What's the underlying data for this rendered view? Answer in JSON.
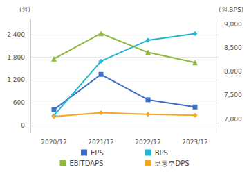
{
  "chart_data": {
    "type": "line",
    "y_label": "(원)",
    "y2_label": "(원,BPS)",
    "categories": [
      "2020/12",
      "2021/12",
      "2022/12",
      "2023/12"
    ],
    "series": [
      {
        "name": "EPS",
        "color": "#3b6fc6",
        "marker": "square",
        "values": [
          420,
          1350,
          680,
          490
        ]
      },
      {
        "name": "BPS",
        "color": "#22b6d2",
        "marker": "diamond",
        "axis": "y2",
        "values": [
          7070,
          8220,
          8660,
          8800
        ]
      },
      {
        "name": "EBITDAPS",
        "color": "#8cb83c",
        "marker": "triangle",
        "values": [
          1760,
          2430,
          1930,
          1660
        ]
      },
      {
        "name": "보통주DPS",
        "color": "#f5a623",
        "marker": "diamond",
        "values": [
          240,
          340,
          300,
          270
        ]
      }
    ],
    "ylim": [
      -200,
      2800
    ],
    "yticks": [
      0,
      600,
      {
        "value": 1200,
        "label": "1,200"
      },
      {
        "value": 1800,
        "label": "1,800"
      },
      {
        "value": 2400,
        "label": "2,400"
      }
    ],
    "y2lim": [
      6700,
      9100
    ],
    "y2ticks": [
      {
        "value": 7000,
        "label": "7,000"
      },
      {
        "value": 7500,
        "label": "7,500"
      },
      {
        "value": 8000,
        "label": "8,000"
      },
      {
        "value": 8500,
        "label": "8,500"
      },
      {
        "value": 9000,
        "label": "9,000"
      }
    ],
    "grid": true,
    "legend": "bottom"
  }
}
